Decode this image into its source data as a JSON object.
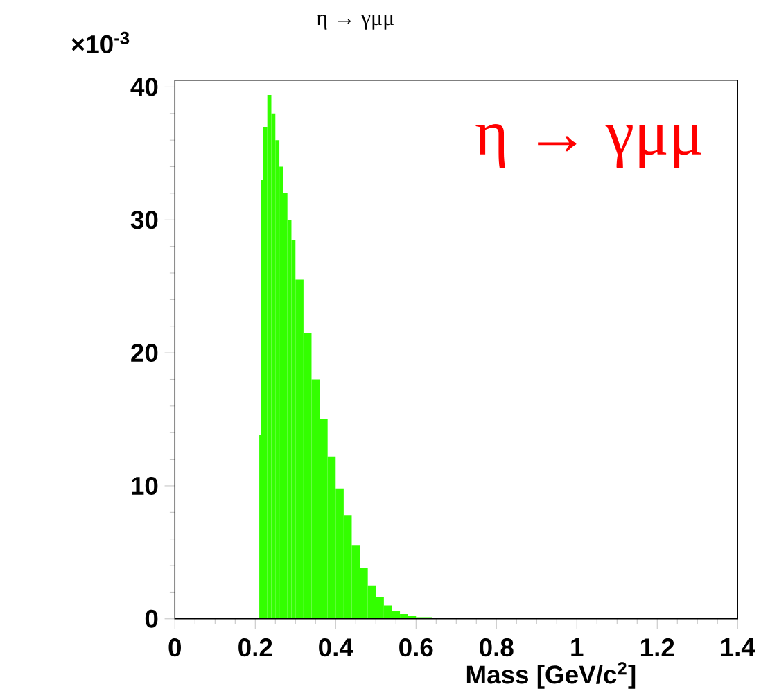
{
  "chart_data": {
    "type": "histogram",
    "title": "η → γμμ",
    "xlabel": "Mass  [GeV/c$^{2}$]",
    "annotations": [
      "η → γμμ",
      "×10$^{-3}$"
    ],
    "bins": [
      0.21,
      0.215,
      0.22,
      0.23,
      0.24,
      0.25,
      0.26,
      0.27,
      0.28,
      0.29,
      0.3,
      0.32,
      0.34,
      0.36,
      0.38,
      0.4,
      0.42,
      0.44,
      0.46,
      0.48,
      0.5,
      0.52,
      0.54,
      0.56,
      0.58,
      0.6,
      0.64,
      0.68,
      0.72
    ],
    "values": [
      13.8,
      33,
      37,
      39.4,
      38,
      36,
      34,
      32,
      30,
      28.5,
      25.5,
      21.5,
      18,
      15,
      12.2,
      9.8,
      7.8,
      5.5,
      3.8,
      2.5,
      1.6,
      1.0,
      0.6,
      0.35,
      0.2,
      0.12,
      0.07,
      0.04
    ],
    "color": "#33ff00",
    "xlim": [
      0,
      1.4
    ],
    "ylim": [
      0,
      40.5
    ],
    "xticks": [
      0,
      0.2,
      0.4,
      0.6,
      0.8,
      1,
      1.2,
      1.4
    ],
    "yticks": [
      0,
      10,
      20,
      30,
      40
    ],
    "grid": false
  }
}
